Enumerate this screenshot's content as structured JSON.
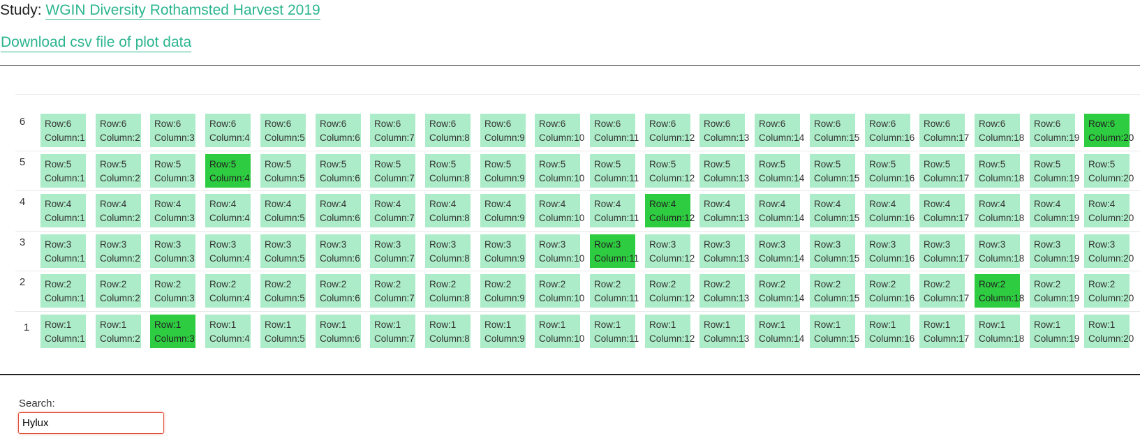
{
  "header": {
    "study_label": "Study:",
    "study_name": "WGIN Diversity Rothamsted Harvest 2019",
    "download_link": "Download csv file of plot data"
  },
  "grid": {
    "rows": [
      6,
      5,
      4,
      3,
      2,
      1
    ],
    "column_count": 20,
    "row_prefix": "Row:",
    "column_prefix": "Column:",
    "highlighted": [
      {
        "row": 6,
        "column": 20
      },
      {
        "row": 5,
        "column": 4
      },
      {
        "row": 4,
        "column": 12
      },
      {
        "row": 3,
        "column": 11
      },
      {
        "row": 2,
        "column": 18
      },
      {
        "row": 1,
        "column": 3
      }
    ]
  },
  "search": {
    "label": "Search:",
    "value": "Hylux"
  },
  "colors": {
    "plot": "#acecc8",
    "plot_highlight": "#2ecc40",
    "link": "#2bb58e",
    "search_border": "#e0533a"
  }
}
